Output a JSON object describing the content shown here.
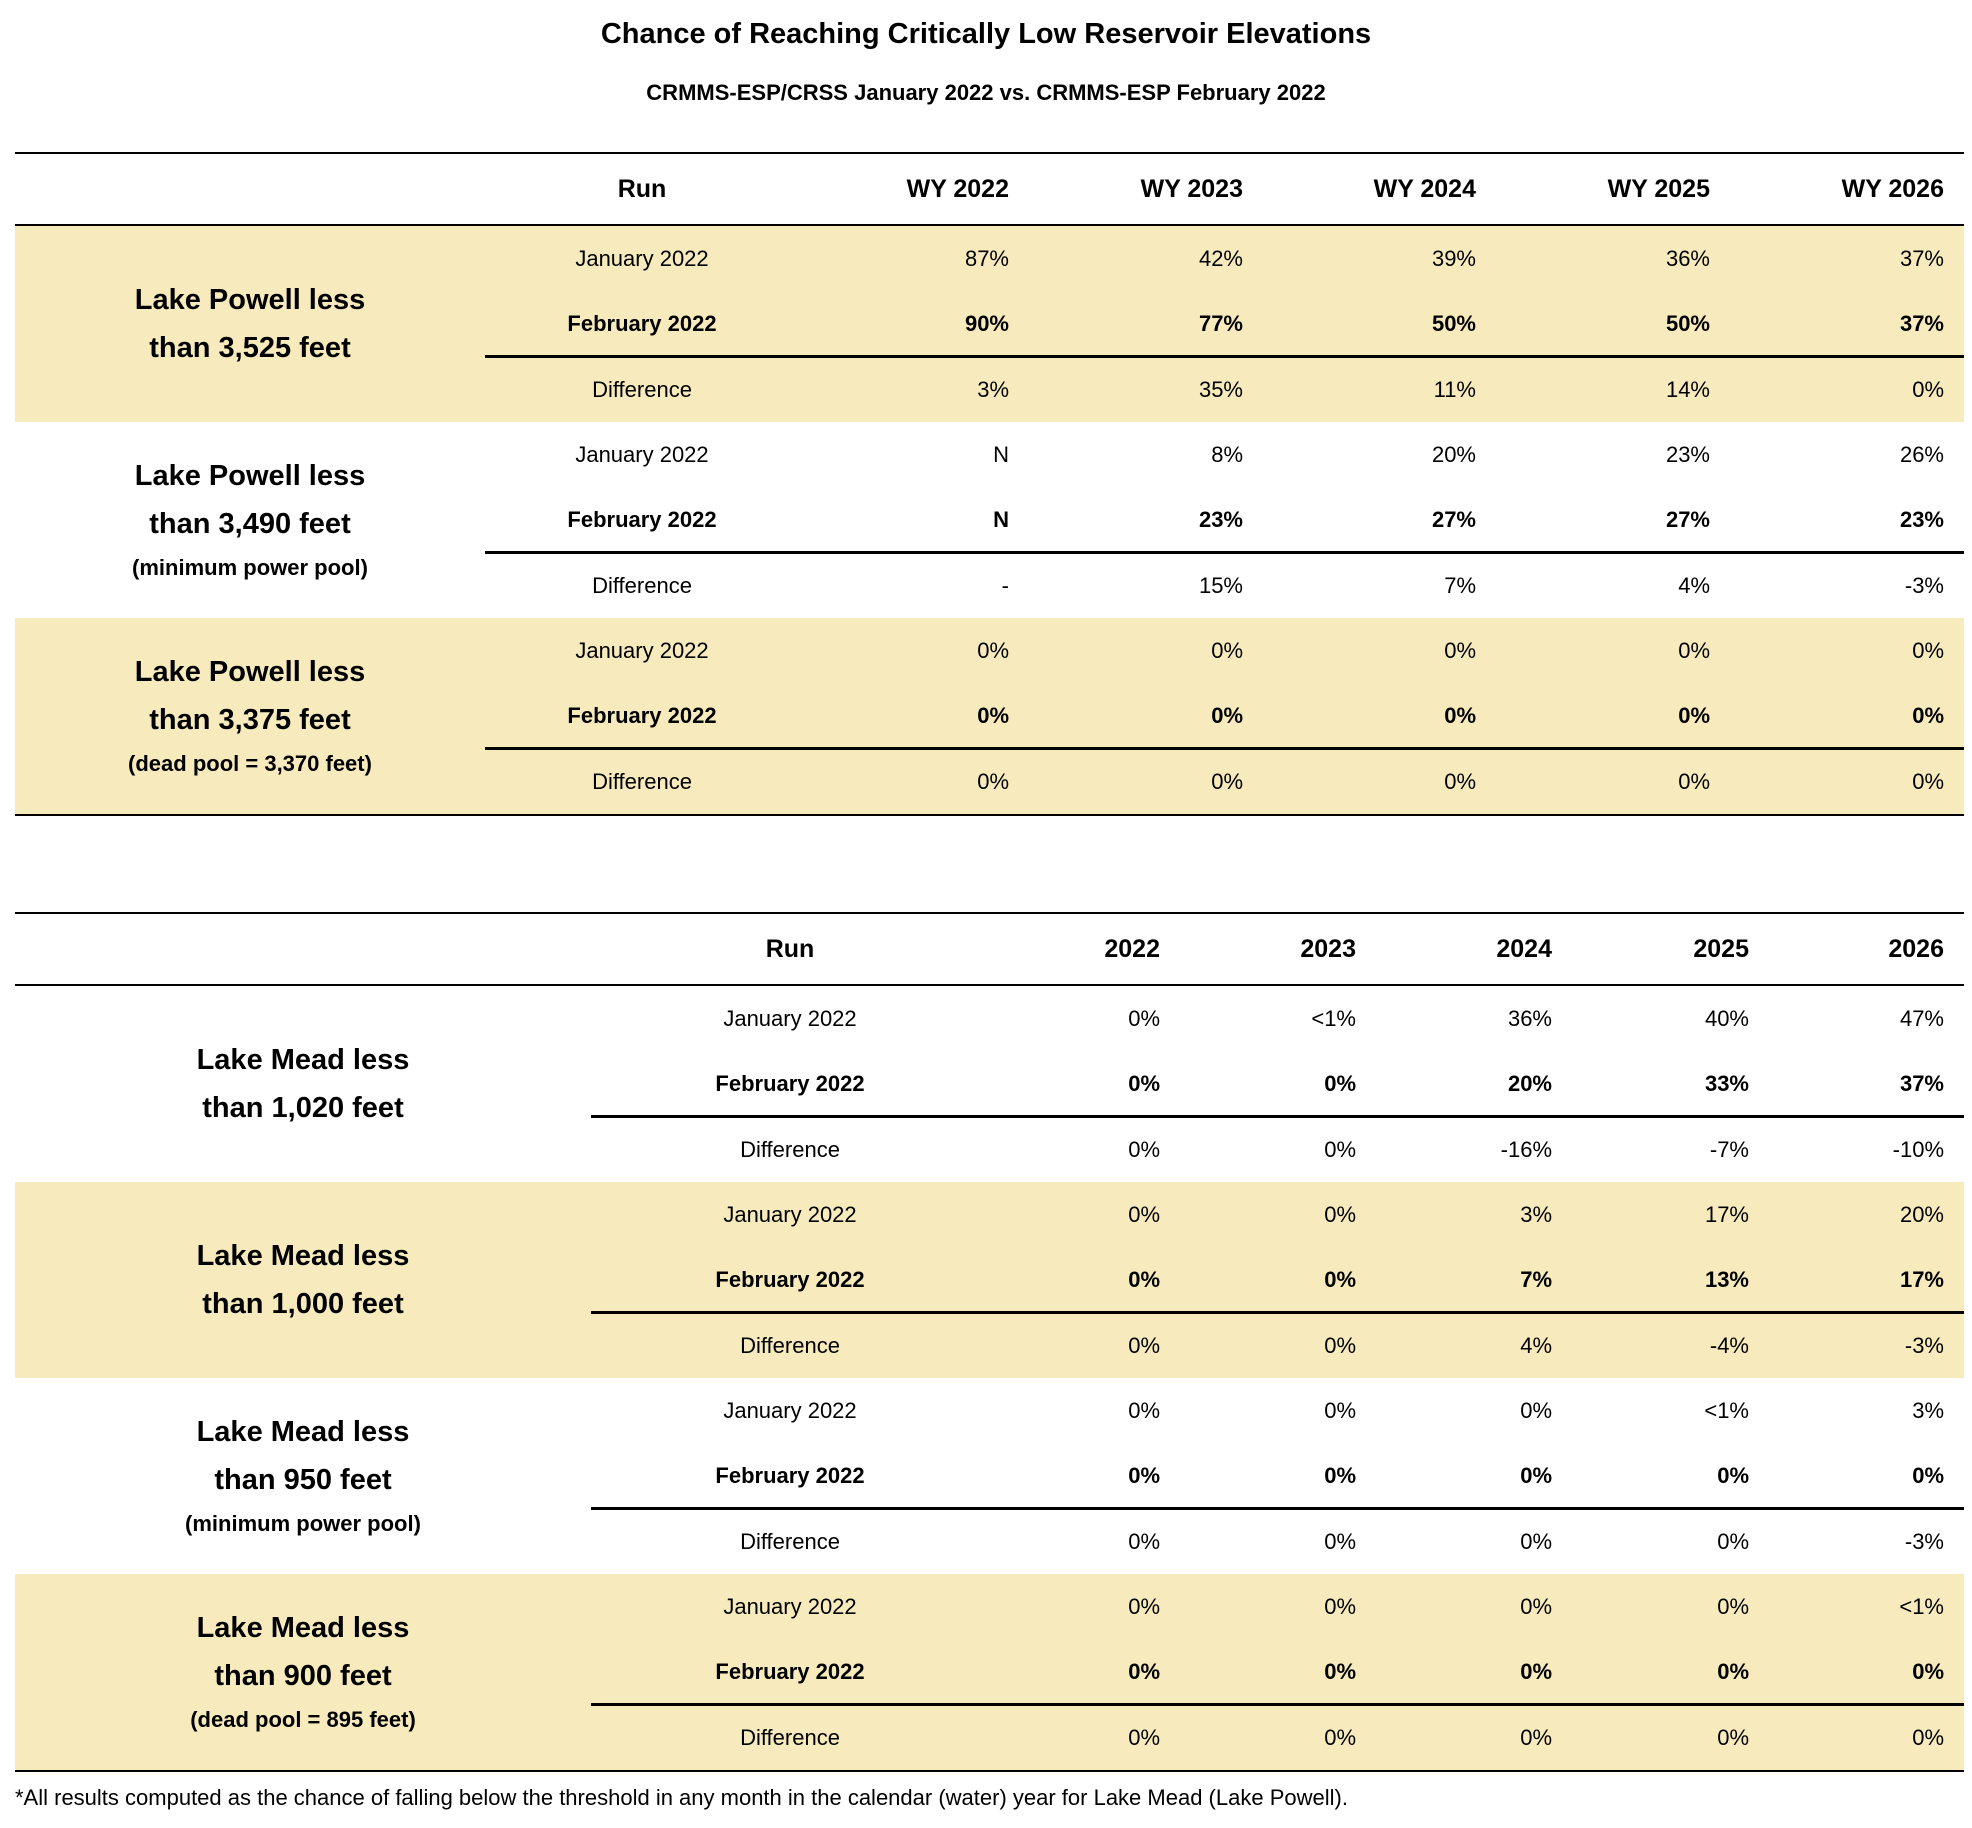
{
  "title": "Chance of Reaching Critically Low Reservoir Elevations",
  "subtitle": "CRMMS-ESP/CRSS January 2022 vs. CRMMS-ESP February 2022",
  "tables": [
    {
      "header": {
        "run": "Run",
        "years": [
          "WY 2022",
          "WY 2023",
          "WY 2024",
          "WY 2025",
          "WY 2026"
        ]
      },
      "groups": [
        {
          "label": [
            "Lake Powell less",
            "than 3,525 feet"
          ],
          "shaded": true,
          "rows": [
            {
              "run": "January 2022",
              "values": [
                "87%",
                "42%",
                "39%",
                "36%",
                "37%"
              ]
            },
            {
              "run": "February 2022",
              "values": [
                "90%",
                "77%",
                "50%",
                "50%",
                "37%"
              ]
            },
            {
              "run": "Difference",
              "values": [
                "3%",
                "35%",
                "11%",
                "14%",
                "0%"
              ]
            }
          ]
        },
        {
          "label": [
            "Lake Powell less",
            "than 3,490 feet",
            "(minimum power pool)"
          ],
          "shaded": false,
          "rows": [
            {
              "run": "January 2022",
              "values": [
                "N",
                "8%",
                "20%",
                "23%",
                "26%"
              ]
            },
            {
              "run": "February 2022",
              "values": [
                "N",
                "23%",
                "27%",
                "27%",
                "23%"
              ]
            },
            {
              "run": "Difference",
              "values": [
                "-",
                "15%",
                "7%",
                "4%",
                "-3%"
              ]
            }
          ]
        },
        {
          "label": [
            "Lake Powell less",
            "than 3,375 feet",
            "(dead pool = 3,370 feet)"
          ],
          "shaded": true,
          "rows": [
            {
              "run": "January 2022",
              "values": [
                "0%",
                "0%",
                "0%",
                "0%",
                "0%"
              ]
            },
            {
              "run": "February 2022",
              "values": [
                "0%",
                "0%",
                "0%",
                "0%",
                "0%"
              ]
            },
            {
              "run": "Difference",
              "values": [
                "0%",
                "0%",
                "0%",
                "0%",
                "0%"
              ]
            }
          ]
        }
      ]
    },
    {
      "header": {
        "run": "Run",
        "years": [
          "2022",
          "2023",
          "2024",
          "2025",
          "2026"
        ]
      },
      "groups": [
        {
          "label": [
            "Lake Mead less",
            "than 1,020 feet"
          ],
          "shaded": false,
          "rows": [
            {
              "run": "January 2022",
              "values": [
                "0%",
                "<1%",
                "36%",
                "40%",
                "47%"
              ]
            },
            {
              "run": "February 2022",
              "values": [
                "0%",
                "0%",
                "20%",
                "33%",
                "37%"
              ]
            },
            {
              "run": "Difference",
              "values": [
                "0%",
                "0%",
                "-16%",
                "-7%",
                "-10%"
              ]
            }
          ]
        },
        {
          "label": [
            "Lake Mead less",
            "than 1,000 feet"
          ],
          "shaded": true,
          "rows": [
            {
              "run": "January 2022",
              "values": [
                "0%",
                "0%",
                "3%",
                "17%",
                "20%"
              ]
            },
            {
              "run": "February 2022",
              "values": [
                "0%",
                "0%",
                "7%",
                "13%",
                "17%"
              ]
            },
            {
              "run": "Difference",
              "values": [
                "0%",
                "0%",
                "4%",
                "-4%",
                "-3%"
              ]
            }
          ]
        },
        {
          "label": [
            "Lake Mead less",
            "than 950 feet",
            "(minimum power pool)"
          ],
          "shaded": false,
          "rows": [
            {
              "run": "January 2022",
              "values": [
                "0%",
                "0%",
                "0%",
                "<1%",
                "3%"
              ]
            },
            {
              "run": "February 2022",
              "values": [
                "0%",
                "0%",
                "0%",
                "0%",
                "0%"
              ]
            },
            {
              "run": "Difference",
              "values": [
                "0%",
                "0%",
                "0%",
                "0%",
                "-3%"
              ]
            }
          ]
        },
        {
          "label": [
            "Lake Mead less",
            "than 900 feet",
            "(dead pool = 895 feet)"
          ],
          "shaded": true,
          "rows": [
            {
              "run": "January 2022",
              "values": [
                "0%",
                "0%",
                "0%",
                "0%",
                "<1%"
              ]
            },
            {
              "run": "February 2022",
              "values": [
                "0%",
                "0%",
                "0%",
                "0%",
                "0%"
              ]
            },
            {
              "run": "Difference",
              "values": [
                "0%",
                "0%",
                "0%",
                "0%",
                "0%"
              ]
            }
          ]
        }
      ]
    }
  ],
  "footnote": "*All results computed as the chance of falling below the threshold in any month in the calendar (water) year for Lake Mead (Lake Powell)."
}
